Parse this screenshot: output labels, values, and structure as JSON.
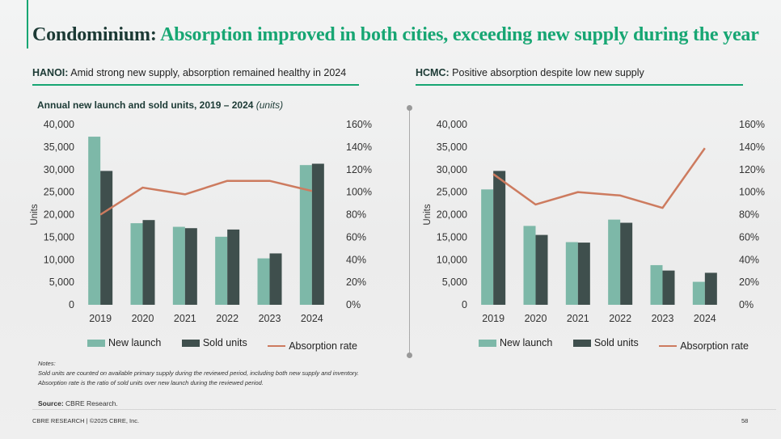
{
  "title": {
    "dark": "Condominium:",
    "green": "Absorption improved in both cities, exceeding new supply during the year"
  },
  "hanoi": {
    "label": "HANOI:",
    "text": "Amid strong new supply, absorption remained healthy in 2024"
  },
  "hcmc": {
    "label": "HCMC:",
    "text": "Positive absorption despite low new supply"
  },
  "chart_heading": {
    "main": "Annual new launch and sold units, 2019 – 2024",
    "unit": "(units)"
  },
  "legend": {
    "new_launch": "New launch",
    "sold_units": "Sold units",
    "absorption": "Absorption rate"
  },
  "notes": {
    "heading": "Notes:",
    "line1": "Sold units are counted on available primary supply during the reviewed period, including both new supply and inventory.",
    "line2": "Absorption rate is the ratio of sold units over new launch during the reviewed period."
  },
  "source": {
    "label": "Source:",
    "text": "CBRE Research."
  },
  "footer": "CBRE RESEARCH | ©2025 CBRE, Inc.",
  "page": "58",
  "colors": {
    "new_launch": "#7db8a8",
    "sold_units": "#3f4f4d",
    "absorption": "#cd7b5f",
    "accent": "#17a673"
  },
  "chart_data": [
    {
      "type": "bar",
      "name": "Hanoi",
      "categories": [
        "2019",
        "2020",
        "2021",
        "2022",
        "2023",
        "2024"
      ],
      "ylabel": "Units",
      "ylim": [
        0,
        40000
      ],
      "yticks": [
        "0",
        "5,000",
        "10,000",
        "15,000",
        "20,000",
        "25,000",
        "30,000",
        "35,000",
        "40,000"
      ],
      "y2lim": [
        0,
        160
      ],
      "y2ticks": [
        "0%",
        "20%",
        "40%",
        "60%",
        "80%",
        "100%",
        "120%",
        "140%",
        "160%"
      ],
      "series": [
        {
          "name": "New launch",
          "values": [
            37300,
            18100,
            17300,
            15100,
            10300,
            31000
          ]
        },
        {
          "name": "Sold units",
          "values": [
            29700,
            18800,
            17000,
            16700,
            11400,
            31300
          ]
        },
        {
          "name": "Absorption rate",
          "axis": "right",
          "values": [
            80,
            104,
            98,
            110,
            110,
            101
          ]
        }
      ]
    },
    {
      "type": "bar",
      "name": "HCMC",
      "categories": [
        "2019",
        "2020",
        "2021",
        "2022",
        "2023",
        "2024"
      ],
      "ylabel": "Units",
      "ylim": [
        0,
        40000
      ],
      "yticks": [
        "0",
        "5,000",
        "10,000",
        "15,000",
        "20,000",
        "25,000",
        "30,000",
        "35,000",
        "40,000"
      ],
      "y2lim": [
        0,
        160
      ],
      "y2ticks": [
        "0%",
        "20%",
        "40%",
        "60%",
        "80%",
        "100%",
        "120%",
        "140%",
        "160%"
      ],
      "series": [
        {
          "name": "New launch",
          "values": [
            25600,
            17500,
            13900,
            18900,
            8800,
            5100
          ]
        },
        {
          "name": "Sold units",
          "values": [
            29700,
            15500,
            13800,
            18200,
            7600,
            7100
          ]
        },
        {
          "name": "Absorption rate",
          "axis": "right",
          "values": [
            116,
            89,
            100,
            97,
            86,
            139
          ]
        }
      ]
    }
  ]
}
